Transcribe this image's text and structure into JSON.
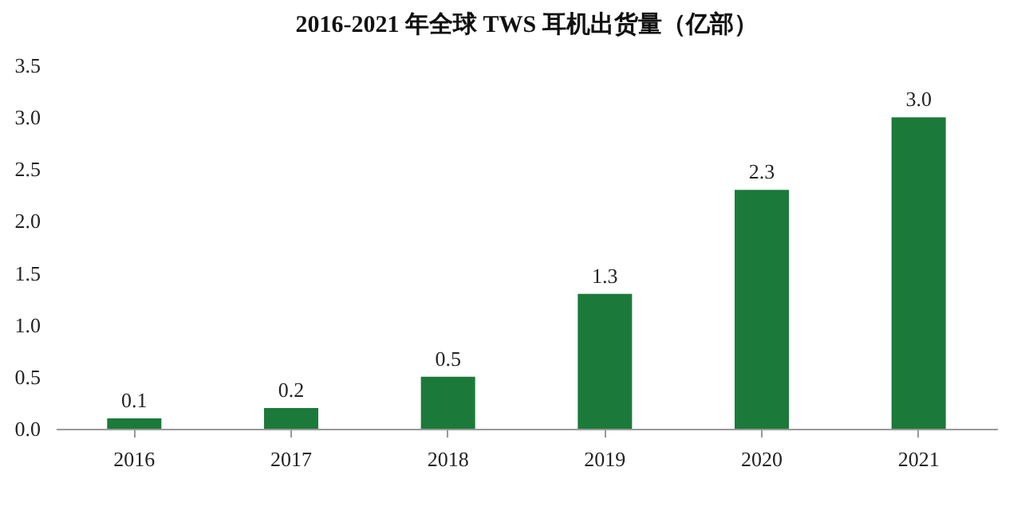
{
  "chart_data": {
    "type": "bar",
    "title": "2016-2021 年全球 TWS 耳机出货量（亿部）",
    "categories": [
      "2016",
      "2017",
      "2018",
      "2019",
      "2020",
      "2021"
    ],
    "values": [
      0.1,
      0.2,
      0.5,
      1.3,
      2.3,
      3.0
    ],
    "value_labels": [
      "0.1",
      "0.2",
      "0.5",
      "1.3",
      "2.3",
      "3.0"
    ],
    "color": "#1b7a3a",
    "ylim": [
      0,
      3.5
    ],
    "yticks": [
      {
        "value": 0,
        "label": "0.0"
      },
      0.5,
      {
        "value": 1,
        "label": "1.0"
      },
      1.5,
      {
        "value": 2,
        "label": "2.0"
      },
      2.5,
      {
        "value": 3,
        "label": "3.0"
      },
      3.5
    ],
    "grid": false
  }
}
